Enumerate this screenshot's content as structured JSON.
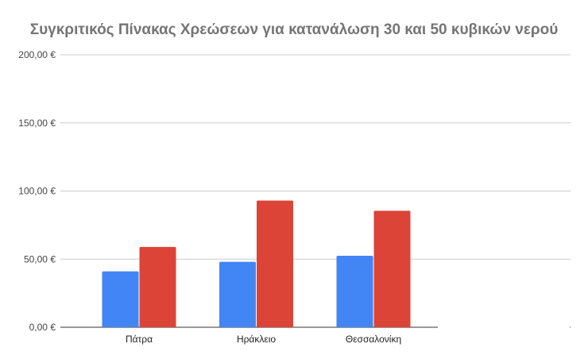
{
  "chart_data": {
    "type": "bar",
    "title": "Συγκριτικός Πίνακας Χρεώσεων για κατανάλωση 30 και 50 κυβικών νερού",
    "xlabel": "",
    "ylabel": "",
    "categories": [
      "Πάτρα",
      "Ηράκλειο",
      "Θεσσαλονίκη"
    ],
    "series": [
      {
        "values": [
          41,
          48,
          52.5
        ],
        "color": "#4285f4"
      },
      {
        "values": [
          59,
          93,
          85.5
        ],
        "color": "#db4437"
      }
    ],
    "ylim": [
      0,
      200
    ],
    "yticks": [
      0,
      50,
      100,
      150,
      200
    ],
    "ytick_labels": [
      "0,00 €",
      "50,00 €",
      "100,00 €",
      "150,00 €",
      "200,00 €"
    ],
    "grid": true,
    "legend": "none"
  }
}
